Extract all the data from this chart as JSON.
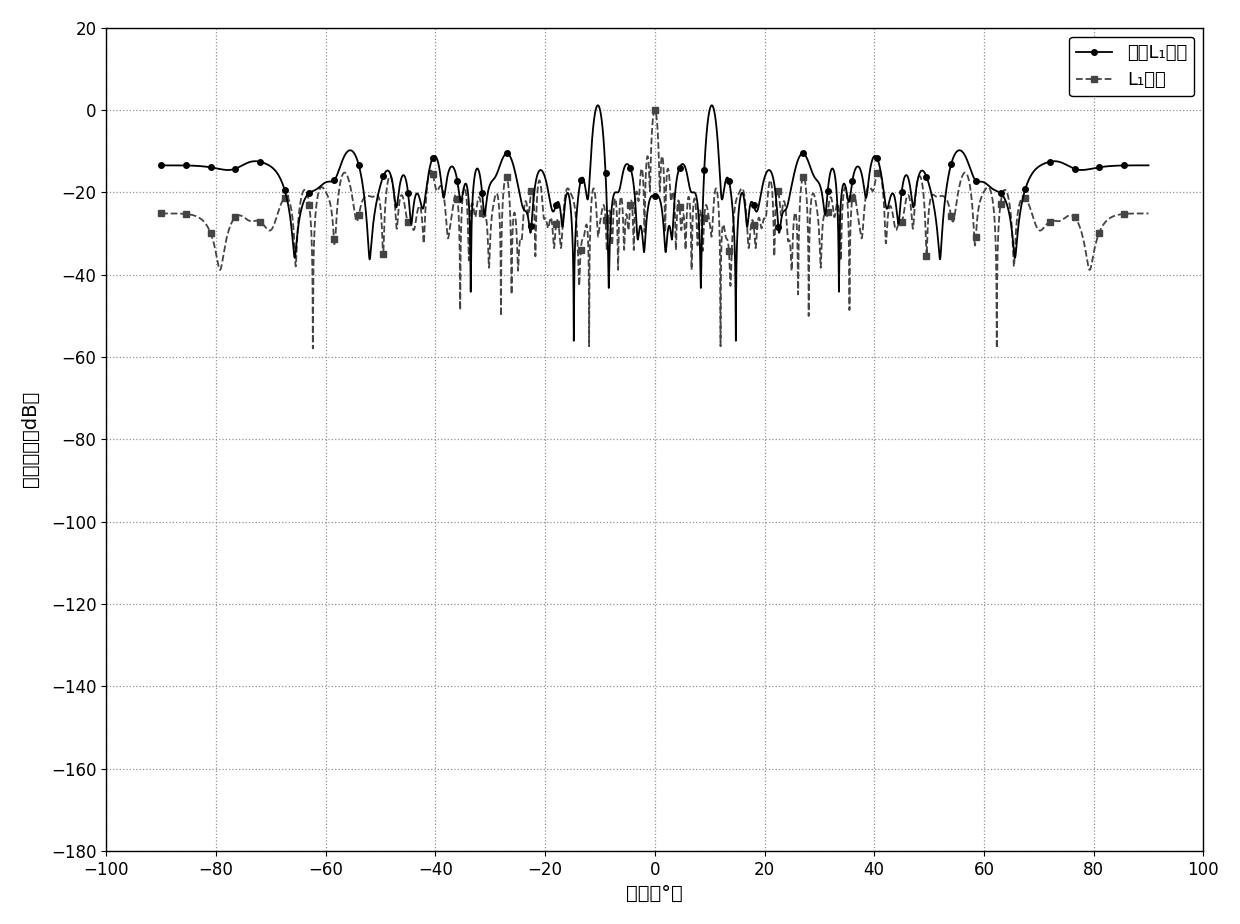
{
  "xlabel": "角度（°）",
  "ylabel": "阵列响应（dB）",
  "xlim": [
    -100,
    100
  ],
  "ylim": [
    -180,
    20
  ],
  "xticks": [
    -100,
    -80,
    -60,
    -40,
    -20,
    0,
    20,
    40,
    60,
    80,
    100
  ],
  "yticks": [
    -180,
    -160,
    -140,
    -120,
    -100,
    -80,
    -60,
    -40,
    -20,
    0,
    20
  ],
  "legend1": "加权L₁范数",
  "legend2": "L₁范数",
  "background_color": "#ffffff",
  "figsize": [
    12.4,
    9.24
  ],
  "dpi": 100
}
